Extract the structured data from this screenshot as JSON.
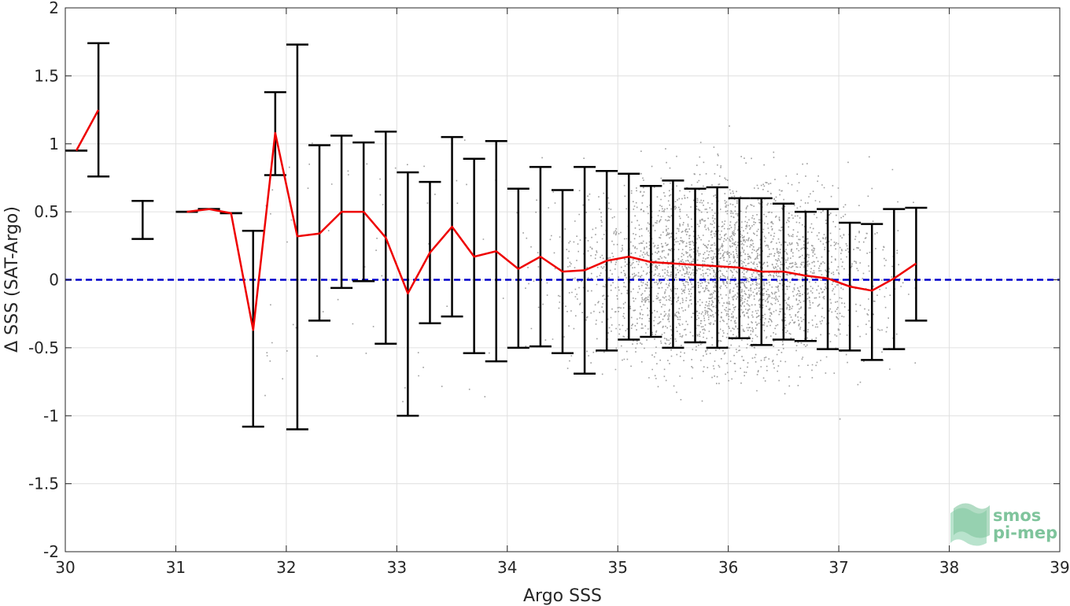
{
  "chart_data": {
    "type": "scatter",
    "xlabel": "Argo SSS",
    "ylabel": "Δ SSS (SAT-Argo)",
    "xlim": [
      30,
      39
    ],
    "ylim": [
      -2,
      2
    ],
    "xticks": [
      30,
      31,
      32,
      33,
      34,
      35,
      36,
      37,
      38,
      39
    ],
    "yticks": [
      -2,
      -1.5,
      -1,
      -0.5,
      0,
      0.5,
      1,
      1.5,
      2
    ],
    "grid": true,
    "reference_line": {
      "y": 0,
      "color": "#0000cc",
      "style": "dashed"
    },
    "scatter_color": "#8c8c8c",
    "mean_line_color": "#ee0000",
    "errorbar_color": "#000000",
    "bins": [
      {
        "x": 30.1,
        "mean": 0.95,
        "low": 0.95,
        "high": 0.95
      },
      {
        "x": 30.3,
        "mean": 1.25,
        "low": 0.76,
        "high": 1.74
      },
      {
        "x": 30.7,
        "mean": null,
        "low": 0.3,
        "high": 0.58
      },
      {
        "x": 31.1,
        "mean": 0.5,
        "low": 0.5,
        "high": 0.5
      },
      {
        "x": 31.3,
        "mean": 0.52,
        "low": 0.52,
        "high": 0.52
      },
      {
        "x": 31.5,
        "mean": 0.49,
        "low": 0.49,
        "high": 0.49
      },
      {
        "x": 31.7,
        "mean": -0.37,
        "low": -1.08,
        "high": 0.36
      },
      {
        "x": 31.9,
        "mean": 1.08,
        "low": 0.77,
        "high": 1.38
      },
      {
        "x": 32.1,
        "mean": 0.32,
        "low": -1.1,
        "high": 1.73
      },
      {
        "x": 32.3,
        "mean": 0.34,
        "low": -0.3,
        "high": 0.99
      },
      {
        "x": 32.5,
        "mean": 0.5,
        "low": -0.06,
        "high": 1.06
      },
      {
        "x": 32.7,
        "mean": 0.5,
        "low": -0.01,
        "high": 1.01
      },
      {
        "x": 32.9,
        "mean": 0.31,
        "low": -0.47,
        "high": 1.09
      },
      {
        "x": 33.1,
        "mean": -0.1,
        "low": -1.0,
        "high": 0.79
      },
      {
        "x": 33.3,
        "mean": 0.2,
        "low": -0.32,
        "high": 0.72
      },
      {
        "x": 33.5,
        "mean": 0.39,
        "low": -0.27,
        "high": 1.05
      },
      {
        "x": 33.7,
        "mean": 0.17,
        "low": -0.54,
        "high": 0.89
      },
      {
        "x": 33.9,
        "mean": 0.21,
        "low": -0.6,
        "high": 1.02
      },
      {
        "x": 34.1,
        "mean": 0.08,
        "low": -0.5,
        "high": 0.67
      },
      {
        "x": 34.3,
        "mean": 0.17,
        "low": -0.49,
        "high": 0.83
      },
      {
        "x": 34.5,
        "mean": 0.06,
        "low": -0.54,
        "high": 0.66
      },
      {
        "x": 34.7,
        "mean": 0.07,
        "low": -0.69,
        "high": 0.83
      },
      {
        "x": 34.9,
        "mean": 0.14,
        "low": -0.52,
        "high": 0.8
      },
      {
        "x": 35.1,
        "mean": 0.17,
        "low": -0.44,
        "high": 0.78
      },
      {
        "x": 35.3,
        "mean": 0.13,
        "low": -0.42,
        "high": 0.69
      },
      {
        "x": 35.5,
        "mean": 0.12,
        "low": -0.5,
        "high": 0.73
      },
      {
        "x": 35.7,
        "mean": 0.11,
        "low": -0.46,
        "high": 0.67
      },
      {
        "x": 35.9,
        "mean": 0.1,
        "low": -0.5,
        "high": 0.68
      },
      {
        "x": 36.1,
        "mean": 0.09,
        "low": -0.43,
        "high": 0.6
      },
      {
        "x": 36.3,
        "mean": 0.06,
        "low": -0.48,
        "high": 0.6
      },
      {
        "x": 36.5,
        "mean": 0.06,
        "low": -0.44,
        "high": 0.56
      },
      {
        "x": 36.7,
        "mean": 0.03,
        "low": -0.45,
        "high": 0.5
      },
      {
        "x": 36.9,
        "mean": 0.01,
        "low": -0.51,
        "high": 0.52
      },
      {
        "x": 37.1,
        "mean": -0.05,
        "low": -0.52,
        "high": 0.42
      },
      {
        "x": 37.3,
        "mean": -0.08,
        "low": -0.59,
        "high": 0.41
      },
      {
        "x": 37.5,
        "mean": 0.01,
        "low": -0.51,
        "high": 0.52
      },
      {
        "x": 37.7,
        "mean": 0.12,
        "low": -0.3,
        "high": 0.53
      }
    ],
    "scatter_cloud": {
      "center_x": 36.0,
      "spread_x": 0.9,
      "center_y": 0.05,
      "spread_y": 0.45,
      "x_range": [
        33.9,
        37.7
      ],
      "count": 6000
    }
  },
  "logo": {
    "line1": "smos",
    "line2": "pi-mep"
  }
}
